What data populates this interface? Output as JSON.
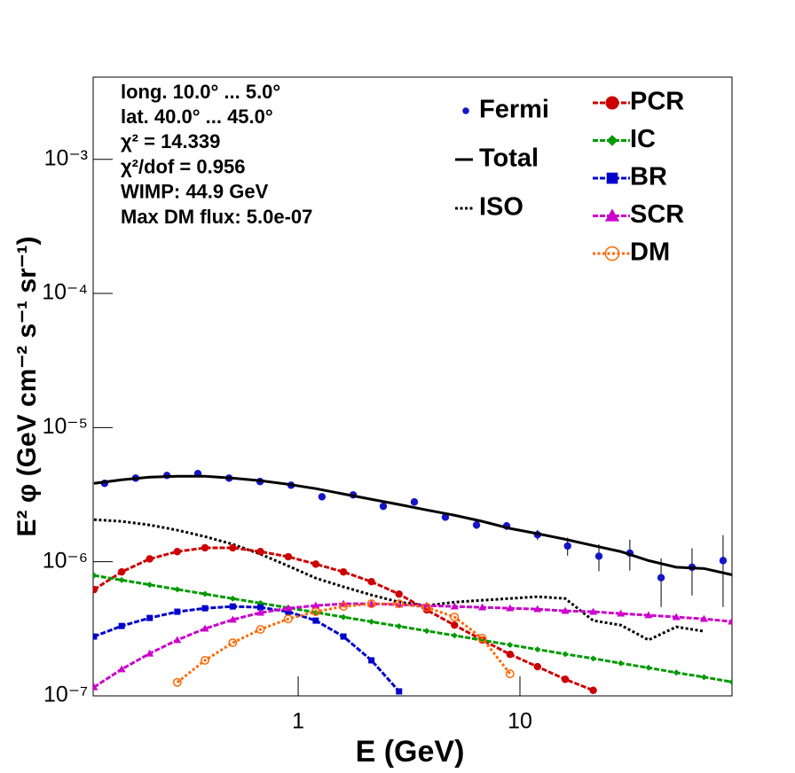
{
  "chart_data": {
    "type": "line",
    "xlabel": "E (GeV)",
    "ylabel": "E² φ (GeV cm⁻² s⁻¹ sr⁻¹)",
    "xlog": true,
    "ylog": true,
    "xlim": [
      0.119,
      90.4
    ],
    "ylim": [
      1e-07,
      0.0041
    ],
    "xticks": [
      1,
      10
    ],
    "yticks": [
      {
        "value": 1e-07,
        "label": "10⁻⁷"
      },
      {
        "value": 1e-06,
        "label": "10⁻⁶"
      },
      {
        "value": 1e-05,
        "label": "10⁻⁵"
      },
      {
        "value": 0.0001,
        "label": "10⁻⁴"
      },
      {
        "value": 0.001,
        "label": "10⁻³"
      }
    ],
    "annotations": [
      "long. 10.0° ... 5.0°",
      "lat. 40.0° ... 45.0°",
      "χ² = 14.339",
      "χ²/dof = 0.956",
      "WIMP: 44.9 GeV",
      "Max DM flux: 5.0e-07"
    ],
    "x": [
      0.12,
      0.16,
      0.214,
      0.285,
      0.38,
      0.507,
      0.676,
      0.902,
      1.2,
      1.6,
      2.14,
      2.85,
      3.8,
      5.07,
      6.76,
      9.02,
      12.0,
      16.0,
      21.4,
      28.5,
      38.0,
      50.7,
      67.6,
      90.2
    ],
    "series": [
      {
        "name": "Fermi",
        "color": "#1414c8",
        "marker": "circle",
        "line": "none",
        "x": [
          0.134,
          0.185,
          0.256,
          0.353,
          0.488,
          0.673,
          0.929,
          1.28,
          1.77,
          2.42,
          3.34,
          4.61,
          6.37,
          8.71,
          12.0,
          16.4,
          22.7,
          31.3,
          43.3,
          59.7,
          82.4
        ],
        "values": [
          3.84e-06,
          4.2e-06,
          4.4e-06,
          4.54e-06,
          4.2e-06,
          3.96e-06,
          3.72e-06,
          3.05e-06,
          3.15e-06,
          2.59e-06,
          2.79e-06,
          2.15e-06,
          1.88e-06,
          1.85e-06,
          1.59e-06,
          1.31e-06,
          1.1e-06,
          1.16e-06,
          7.6e-07,
          9.1e-07,
          1.02e-06
        ],
        "errors": [
          1.2e-07,
          1.3e-07,
          1.3e-07,
          1.4e-07,
          1.3e-07,
          1.2e-07,
          1.1e-07,
          1e-07,
          1e-07,
          9e-08,
          1e-07,
          1.2e-07,
          1.3e-07,
          1.3e-07,
          1.4e-07,
          2e-07,
          2.5e-07,
          3e-07,
          3e-07,
          3.5e-07,
          5.6e-07
        ]
      },
      {
        "name": "Total",
        "color": "#000000",
        "marker": "none",
        "line": "solid",
        "values": [
          3.84e-06,
          4.08e-06,
          4.27e-06,
          4.34e-06,
          4.34e-06,
          4.2e-06,
          4.02e-06,
          3.78e-06,
          3.51e-06,
          3.2e-06,
          2.92e-06,
          2.67e-06,
          2.43e-06,
          2.22e-06,
          2e-06,
          1.77e-06,
          1.62e-06,
          1.47e-06,
          1.32e-06,
          1.19e-06,
          1.02e-06,
          9.1e-07,
          8.9e-07,
          8e-07
        ]
      },
      {
        "name": "ISO",
        "color": "#000000",
        "marker": "none",
        "line": "dotted",
        "values": [
          2.06e-06,
          2e-06,
          1.88e-06,
          1.72e-06,
          1.54e-06,
          1.35e-06,
          1.14e-06,
          9.3e-07,
          7.55e-07,
          6.5e-07,
          5.65e-07,
          5e-07,
          4.71e-07,
          5e-07,
          5.16e-07,
          5.32e-07,
          5.49e-07,
          5.32e-07,
          3.64e-07,
          3.37e-07,
          2.61e-07,
          3.27e-07,
          3.03e-07,
          null
        ]
      },
      {
        "name": "PCR",
        "color": "#cc0000",
        "marker": "circle",
        "line": "dashed",
        "values": [
          6.2e-07,
          8.4e-07,
          1.05e-06,
          1.19e-06,
          1.27e-06,
          1.27e-06,
          1.19e-06,
          1.09e-06,
          9.6e-07,
          8.4e-07,
          7.1e-07,
          5.74e-07,
          4.37e-07,
          3.37e-07,
          2.61e-07,
          2.04e-07,
          1.65e-07,
          1.33e-07,
          1.1e-07,
          null,
          null,
          null,
          null,
          null
        ]
      },
      {
        "name": "IC",
        "color": "#009900",
        "marker": "diamond",
        "line": "dashed",
        "values": [
          7.9e-07,
          7.3e-07,
          6.74e-07,
          6.22e-07,
          5.75e-07,
          5.31e-07,
          4.91e-07,
          4.54e-07,
          4.19e-07,
          3.87e-07,
          3.57e-07,
          3.3e-07,
          3.05e-07,
          2.82e-07,
          2.6e-07,
          2.4e-07,
          2.22e-07,
          2.05e-07,
          1.9e-07,
          1.75e-07,
          1.62e-07,
          1.49e-07,
          1.38e-07,
          1.27e-07
        ]
      },
      {
        "name": "BR",
        "color": "#0000cc",
        "marker": "square",
        "line": "dashed",
        "values": [
          2.77e-07,
          3.32e-07,
          3.81e-07,
          4.24e-07,
          4.5e-07,
          4.64e-07,
          4.57e-07,
          4.24e-07,
          3.64e-07,
          2.77e-07,
          1.84e-07,
          1.08e-07,
          null,
          null,
          null,
          null,
          null,
          null,
          null,
          null,
          null,
          null,
          null,
          null
        ]
      },
      {
        "name": "SCR",
        "color": "#cc00cc",
        "marker": "triangle",
        "line": "dashed",
        "values": [
          1.16e-07,
          1.58e-07,
          2.07e-07,
          2.61e-07,
          3.17e-07,
          3.7e-07,
          4.17e-07,
          4.5e-07,
          4.71e-07,
          4.86e-07,
          4.86e-07,
          4.79e-07,
          4.71e-07,
          4.64e-07,
          4.57e-07,
          4.5e-07,
          4.43e-07,
          4.3e-07,
          4.24e-07,
          4.11e-07,
          3.99e-07,
          3.87e-07,
          3.75e-07,
          3.58e-07
        ]
      },
      {
        "name": "DM",
        "color": "#ff6600",
        "marker": "open-circle",
        "line": "dotted",
        "values": [
          null,
          null,
          null,
          1.26e-07,
          1.84e-07,
          2.49e-07,
          3.13e-07,
          3.75e-07,
          4.24e-07,
          4.64e-07,
          4.86e-07,
          4.86e-07,
          4.57e-07,
          3.87e-07,
          2.69e-07,
          1.46e-07,
          null,
          null,
          null,
          null,
          null,
          null,
          null,
          null
        ]
      }
    ]
  }
}
